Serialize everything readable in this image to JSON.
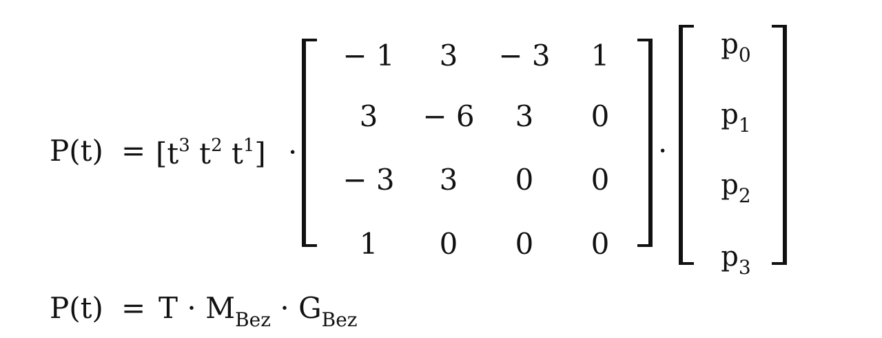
{
  "equation1": {
    "lhs": "P(t)",
    "eq": "=",
    "t_open": "[t",
    "t3_exp": "3",
    "t2": "t",
    "t2_exp": "2",
    "t1": "t",
    "t1_exp": "1",
    "t_close": "]",
    "dot1": "·",
    "dot2": "·",
    "matrix": [
      [
        "− 1",
        "3",
        "− 3",
        "1"
      ],
      [
        "3",
        "− 6",
        "3",
        "0"
      ],
      [
        "− 3",
        "3",
        "0",
        "0"
      ],
      [
        "1",
        "0",
        "0",
        "0"
      ]
    ],
    "points": [
      {
        "base": "p",
        "sub": "0"
      },
      {
        "base": "p",
        "sub": "1"
      },
      {
        "base": "p",
        "sub": "2"
      },
      {
        "base": "p",
        "sub": "3"
      }
    ]
  },
  "equation2": {
    "lhs": "P(t)",
    "eq": "=",
    "T": "T",
    "dot1": "·",
    "M": "M",
    "M_sub": "Bez",
    "dot2": "·",
    "G": "G",
    "G_sub": "Bez"
  }
}
